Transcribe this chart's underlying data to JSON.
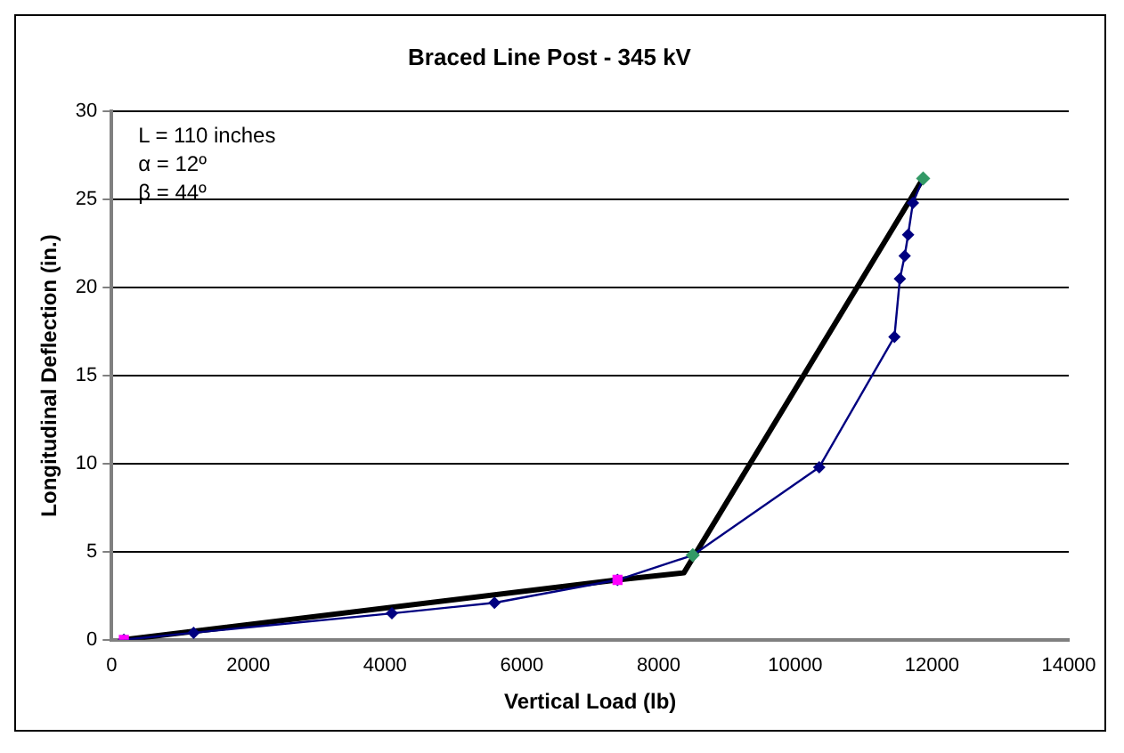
{
  "chart_data": {
    "type": "line",
    "title": "Braced Line Post - 345 kV",
    "xlabel": "Vertical Load (lb)",
    "ylabel": "Longitudinal Deflection (in.)",
    "annotations": [
      "L = 110 inches",
      "α = 12º",
      "β = 44º"
    ],
    "xlim": [
      0,
      14000
    ],
    "xticks": [
      0,
      2000,
      4000,
      6000,
      8000,
      10000,
      12000,
      14000
    ],
    "ylim": [
      0,
      30
    ],
    "yticks": [
      0,
      5,
      10,
      15,
      20,
      25,
      30
    ],
    "grid": "y",
    "legend": false,
    "series": [
      {
        "color": "#000080",
        "marker": "diamond",
        "x": [
          180,
          1200,
          4100,
          5600,
          7400,
          8500,
          10350,
          11450,
          11530,
          11600,
          11650,
          11720,
          11870
        ],
        "values": [
          0,
          0.4,
          1.5,
          2.1,
          3.4,
          4.8,
          9.8,
          17.2,
          20.5,
          21.8,
          23,
          24.8,
          26.2
        ]
      },
      {
        "color": "#000000",
        "marker": "none",
        "x": [
          180,
          7400,
          8370,
          11870
        ],
        "values": [
          0,
          3.4,
          3.8,
          26.2
        ]
      },
      {
        "type": "scatter",
        "color": "#ff00ff",
        "marker": "square",
        "x": [
          180,
          7400
        ],
        "values": [
          0,
          3.4
        ]
      },
      {
        "type": "scatter",
        "color": "#339966",
        "marker": "diamond",
        "x": [
          8500,
          11870
        ],
        "values": [
          4.8,
          26.2
        ]
      }
    ]
  }
}
